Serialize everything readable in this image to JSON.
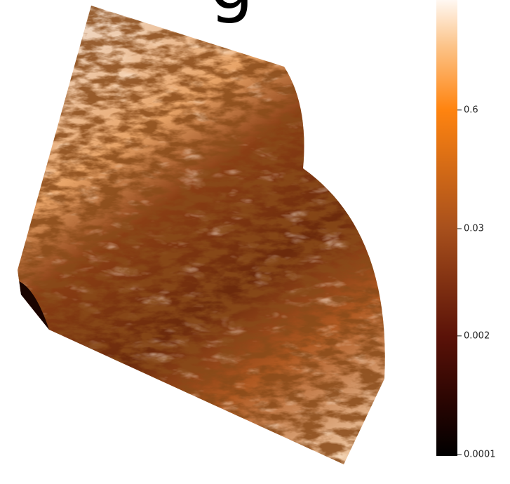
{
  "chart_data": {
    "type": "colorbar-image",
    "title": "g",
    "ylim": [
      0.0001,
      10
    ],
    "yticks": [
      0.0001,
      0.002,
      0.03,
      0.6
    ],
    "log_scale": true
  }
}
